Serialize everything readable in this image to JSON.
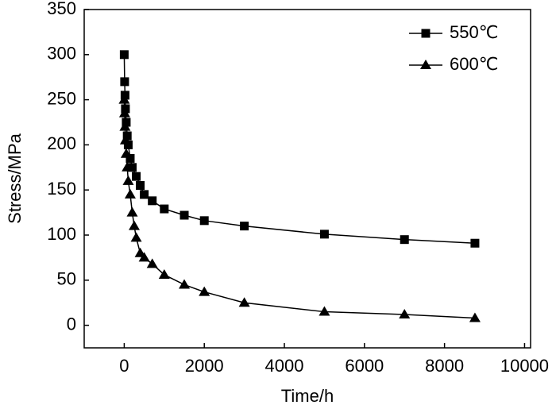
{
  "chart_data": {
    "type": "line",
    "x_label": "Time/h",
    "y_label": "Stress/MPa",
    "xlim": [
      -1000,
      10150
    ],
    "ylim": [
      -25,
      350
    ],
    "xticks": [
      0,
      2000,
      4000,
      6000,
      8000,
      10000
    ],
    "yticks": [
      0,
      50,
      100,
      150,
      200,
      250,
      300,
      350
    ],
    "grid": false,
    "legend": "upper right",
    "series": [
      {
        "name": "550℃",
        "color": "#000000",
        "marker": "square",
        "x": [
          0,
          10,
          20,
          30,
          50,
          75,
          100,
          150,
          200,
          300,
          400,
          500,
          700,
          1000,
          1500,
          2000,
          3000,
          5000,
          7000,
          8760
        ],
        "values": [
          300,
          270,
          255,
          240,
          225,
          210,
          200,
          185,
          175,
          165,
          155,
          145,
          138,
          129,
          122,
          116,
          110,
          101,
          95,
          91
        ]
      },
      {
        "name": "600℃",
        "color": "#000000",
        "marker": "triangle",
        "x": [
          0,
          10,
          20,
          30,
          50,
          75,
          100,
          150,
          200,
          250,
          300,
          400,
          500,
          700,
          1000,
          1500,
          2000,
          3000,
          5000,
          7000,
          8760
        ],
        "values": [
          250,
          235,
          220,
          205,
          190,
          175,
          160,
          145,
          125,
          110,
          97,
          80,
          75,
          68,
          56,
          45,
          37,
          25,
          15,
          12,
          8
        ]
      }
    ]
  }
}
